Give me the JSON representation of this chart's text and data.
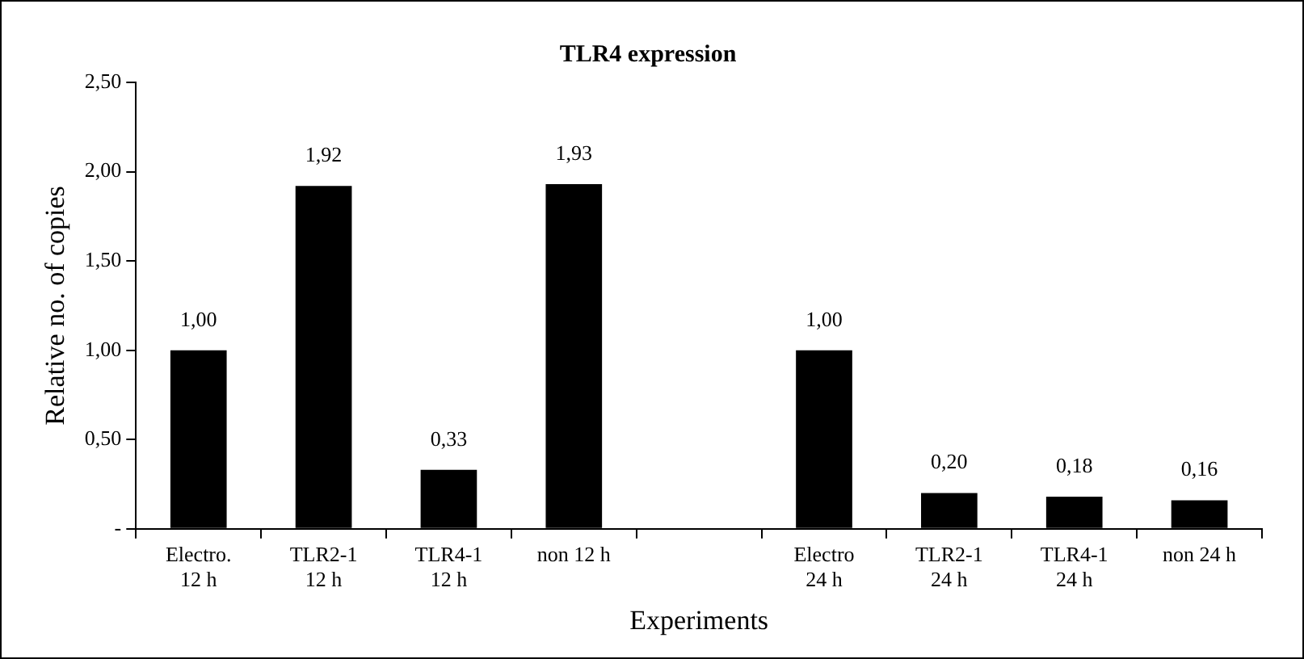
{
  "chart_data": {
    "type": "bar",
    "title": "TLR4 expression",
    "xlabel": "Experiments",
    "ylabel": "Relative no. of copies",
    "categories": [
      "Electro.\n12 h",
      "TLR2-1\n12 h",
      "TLR4-1\n12 h",
      "non 12 h",
      null,
      "Electro\n24 h",
      "TLR2-1\n24 h",
      "TLR4-1\n24 h",
      "non 24 h"
    ],
    "values": [
      1.0,
      1.92,
      0.33,
      1.93,
      null,
      1.0,
      0.2,
      0.18,
      0.16
    ],
    "value_labels": [
      "1,00",
      "1,92",
      "0,33",
      "1,93",
      null,
      "1,00",
      "0,20",
      "0,18",
      "0,16"
    ],
    "color": "#000000",
    "ylim": [
      0,
      2.5
    ],
    "yticks": [
      {
        "value": 0,
        "label": "-"
      },
      {
        "value": 0.5,
        "label": "0,50"
      },
      {
        "value": 1,
        "label": "1,00"
      },
      {
        "value": 1.5,
        "label": "1,50"
      },
      {
        "value": 2,
        "label": "2,00"
      },
      {
        "value": 2.5,
        "label": "2,50"
      }
    ],
    "grid": false,
    "legend": false
  }
}
